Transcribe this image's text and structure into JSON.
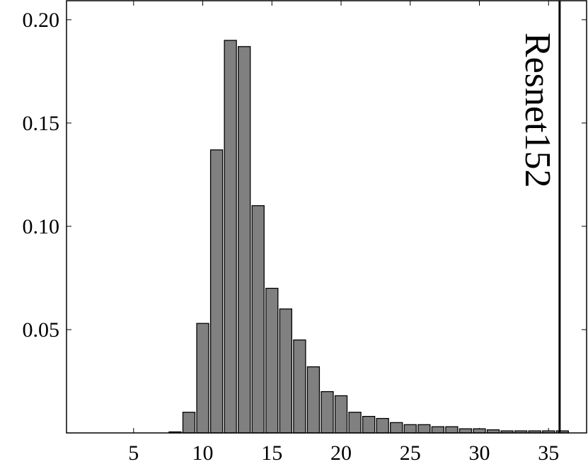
{
  "chart_data": {
    "type": "bar",
    "x": [
      1,
      2,
      3,
      4,
      5,
      6,
      7,
      8,
      9,
      10,
      11,
      12,
      13,
      14,
      15,
      16,
      17,
      18,
      19,
      20,
      21,
      22,
      23,
      24,
      25,
      26,
      27,
      28,
      29,
      30,
      31,
      32,
      33,
      34,
      35,
      36
    ],
    "values": [
      0,
      0,
      0,
      0,
      0,
      0,
      0,
      0.0005,
      0.01,
      0.053,
      0.137,
      0.19,
      0.187,
      0.11,
      0.07,
      0.06,
      0.045,
      0.032,
      0.02,
      0.018,
      0.01,
      0.008,
      0.007,
      0.005,
      0.004,
      0.004,
      0.003,
      0.003,
      0.002,
      0.002,
      0.0015,
      0.001,
      0.001,
      0.001,
      0.001,
      0.001
    ],
    "color": "#808080",
    "xlim": [
      0.15,
      37.75
    ],
    "ylim": [
      0,
      0.2092
    ],
    "xticks": [
      5,
      10,
      15,
      20,
      25,
      30,
      35
    ],
    "yticks": [
      0.05,
      {
        "value": 0.1,
        "label": "0.10"
      },
      0.15,
      {
        "value": 0.2,
        "label": "0.20"
      }
    ],
    "annotations": [
      {
        "text": "Resnet152",
        "x": 35.8
      }
    ]
  }
}
